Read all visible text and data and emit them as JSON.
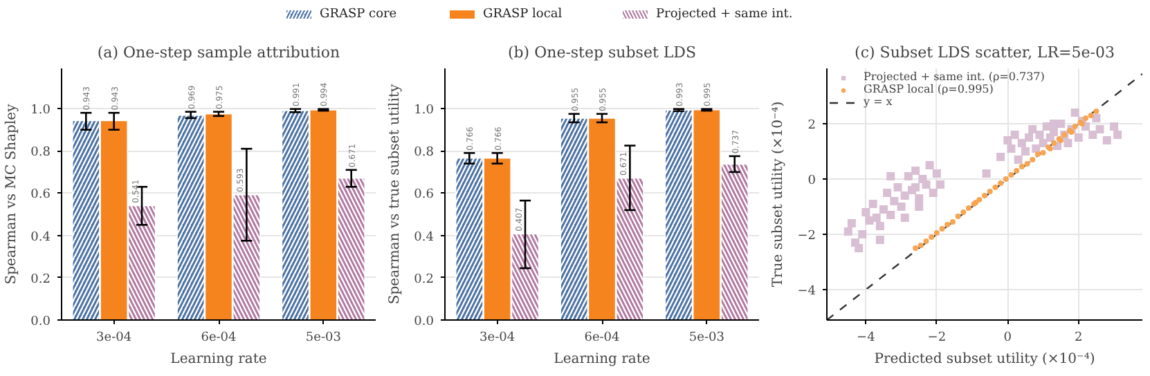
{
  "chart_data": [
    {
      "type": "bar",
      "title": "(a) One-step sample attribution",
      "xlabel": "Learning rate",
      "ylabel": "Spearman vs MC Shapley",
      "categories": [
        "3e-04",
        "6e-04",
        "5e-03"
      ],
      "series": [
        {
          "name": "GRASP core",
          "color": "#4c72a4",
          "values": [
            0.943,
            0.969,
            0.991
          ],
          "errors": [
            [
              0.9,
              0.98
            ],
            [
              0.955,
              0.985
            ],
            [
              0.983,
              0.998
            ]
          ]
        },
        {
          "name": "GRASP local",
          "color": "#f5841f",
          "values": [
            0.943,
            0.975,
            0.994
          ],
          "errors": [
            [
              0.9,
              0.98
            ],
            [
              0.965,
              0.985
            ],
            [
              0.99,
              0.998
            ]
          ]
        },
        {
          "name": "Projected + same int.",
          "color": "#b07aa1",
          "values": [
            0.541,
            0.593,
            0.671
          ],
          "errors": [
            [
              0.45,
              0.63
            ],
            [
              0.375,
              0.81
            ],
            [
              0.63,
              0.71
            ]
          ]
        }
      ],
      "ylim": [
        0,
        1.19
      ],
      "yticks": [
        {
          "value": 0,
          "label": "0.0"
        },
        0.2,
        0.4,
        0.6,
        0.8,
        {
          "value": 1,
          "label": "1.0"
        }
      ],
      "grid": "y",
      "data_labels": true,
      "legend": "top"
    },
    {
      "type": "bar",
      "title": "(b) One-step subset LDS",
      "xlabel": "Learning rate",
      "ylabel": "Spearman vs true subset utility",
      "categories": [
        "3e-04",
        "6e-04",
        "5e-03"
      ],
      "series": [
        {
          "name": "GRASP core",
          "color": "#4c72a4",
          "values": [
            0.766,
            0.955,
            0.993
          ],
          "errors": [
            [
              0.74,
              0.79
            ],
            [
              0.935,
              0.975
            ],
            [
              0.988,
              0.998
            ]
          ]
        },
        {
          "name": "GRASP local",
          "color": "#f5841f",
          "values": [
            0.766,
            0.955,
            0.995
          ],
          "errors": [
            [
              0.74,
              0.79
            ],
            [
              0.935,
              0.975
            ],
            [
              0.99,
              0.998
            ]
          ]
        },
        {
          "name": "Projected + same int.",
          "color": "#b07aa1",
          "values": [
            0.407,
            0.671,
            0.737
          ],
          "errors": [
            [
              0.245,
              0.565
            ],
            [
              0.52,
              0.825
            ],
            [
              0.7,
              0.775
            ]
          ]
        }
      ],
      "ylim": [
        0,
        1.19
      ],
      "yticks": [
        {
          "value": 0,
          "label": "0.0"
        },
        0.2,
        0.4,
        0.6,
        0.8,
        {
          "value": 1,
          "label": "1.0"
        }
      ],
      "grid": "y",
      "data_labels": true,
      "legend": "top"
    },
    {
      "type": "scatter",
      "title": "(c) Subset LDS scatter, LR=5e-03",
      "xlabel": "Predicted subset utility (×10⁻⁴)",
      "ylabel": "True subset utility (×10⁻⁴)",
      "series": [
        {
          "name": "Projected + same int. (ρ=0.737)",
          "color": "#d9bfd3",
          "marker": "square",
          "x": [
            -4.3,
            -4.2,
            -4.4,
            -4.1,
            -4.0,
            -3.9,
            -3.8,
            -3.7,
            -3.6,
            -3.5,
            -3.4,
            -3.3,
            -3.2,
            -3.1,
            -3.0,
            -2.9,
            -2.8,
            -2.7,
            -2.6,
            -2.5,
            -2.4,
            -2.3,
            -2.2,
            -2.1,
            -2.0,
            -3.6,
            -2.9,
            -3.3,
            -2.6,
            -1.9,
            -4.5,
            -2.5,
            -0.6,
            -0.2,
            0.1,
            0.2,
            0.3,
            0.4,
            0.5,
            0.6,
            0.7,
            0.8,
            0.9,
            1.0,
            1.1,
            1.2,
            1.3,
            1.4,
            1.5,
            1.6,
            1.7,
            1.8,
            1.9,
            2.0,
            2.1,
            2.2,
            2.4,
            2.6,
            2.8,
            3.0,
            3.1,
            2.5,
            1.3,
            0.0
          ],
          "values": [
            -2.3,
            -2.5,
            -1.6,
            -2.0,
            -1.2,
            -1.5,
            -0.9,
            -1.4,
            -1.7,
            -1.1,
            -0.5,
            -1.3,
            -0.8,
            -0.3,
            -1.0,
            -0.6,
            0.1,
            -0.4,
            0.3,
            -0.7,
            0.0,
            -0.2,
            0.5,
            -0.5,
            0.2,
            -2.2,
            -1.4,
            0.1,
            -0.3,
            -0.2,
            -1.9,
            -1.0,
            0.2,
            0.8,
            1.1,
            1.6,
            0.7,
            1.3,
            1.0,
            1.5,
            1.8,
            1.1,
            1.6,
            1.3,
            1.9,
            1.5,
            1.7,
            1.2,
            2.0,
            1.6,
            1.3,
            1.8,
            2.4,
            1.5,
            2.1,
            1.9,
            1.6,
            1.8,
            1.4,
            1.9,
            1.6,
            2.2,
            2.0,
            1.4
          ]
        },
        {
          "name": "GRASP local (ρ=0.995)",
          "color": "#f7a552",
          "marker": "circle",
          "x": [
            -2.6,
            -2.45,
            -2.3,
            -2.15,
            -2.0,
            -1.85,
            -1.7,
            -1.55,
            -1.4,
            -1.25,
            -1.1,
            -0.95,
            -0.8,
            -0.65,
            -0.5,
            -0.35,
            -0.2,
            -0.05,
            0.1,
            0.25,
            0.4,
            0.55,
            0.7,
            0.85,
            1.0,
            1.15,
            1.3,
            1.45,
            1.6,
            1.75,
            1.9,
            2.05,
            2.2,
            2.35,
            2.5,
            1.2,
            1.5,
            1.8,
            2.1,
            -0.9
          ],
          "values": [
            -2.5,
            -2.4,
            -2.25,
            -2.1,
            -1.95,
            -1.8,
            -1.65,
            -1.55,
            -1.35,
            -1.2,
            -1.05,
            -0.9,
            -0.75,
            -0.6,
            -0.45,
            -0.3,
            -0.15,
            0.0,
            0.15,
            0.3,
            0.45,
            0.55,
            0.7,
            0.9,
            0.95,
            1.15,
            1.3,
            1.45,
            1.6,
            1.75,
            1.9,
            2.05,
            2.2,
            2.3,
            2.45,
            1.1,
            1.4,
            1.7,
            2.0,
            -0.85
          ]
        },
        {
          "name": "y = x",
          "type": "line",
          "color": "#333333",
          "line_style": "dashed",
          "x": [
            -5.1,
            3.8
          ],
          "values": [
            -5.1,
            3.8
          ]
        }
      ],
      "xlim": [
        -5.1,
        3.8
      ],
      "ylim": [
        -5.1,
        4.0
      ],
      "xticks": [
        {
          "value": -4,
          "label": "−4"
        },
        {
          "value": -2,
          "label": "−2"
        },
        0,
        2
      ],
      "yticks": [
        {
          "value": -4,
          "label": "−4"
        },
        {
          "value": -2,
          "label": "−2"
        },
        0,
        2
      ],
      "grid": true,
      "legend": "top left"
    }
  ]
}
